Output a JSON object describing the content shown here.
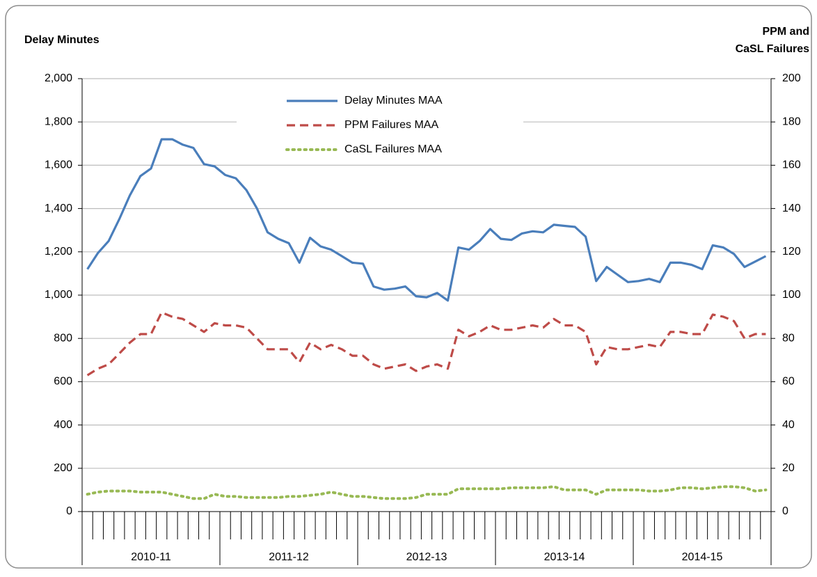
{
  "chart_data": {
    "type": "line",
    "y_label": "Delay Minutes",
    "y2_label_lines": [
      "PPM and",
      "CaSL Failures"
    ],
    "categories": [
      null,
      null,
      null,
      null,
      null,
      null,
      null,
      null,
      null,
      null,
      null,
      null,
      null,
      null,
      null,
      null,
      null,
      null,
      null,
      null,
      null,
      null,
      null,
      null,
      null,
      null,
      null,
      null,
      null,
      null,
      null,
      null,
      null,
      null,
      null,
      null,
      null,
      null,
      null,
      null,
      null,
      null,
      null,
      null,
      null,
      null,
      null,
      null,
      null,
      null,
      null,
      null,
      null,
      null,
      null,
      null,
      null,
      null,
      null,
      null,
      null,
      null,
      null,
      null,
      null
    ],
    "year_groups": [
      "2010-11",
      "2011-12",
      "2012-13",
      "2013-14",
      "2014-15"
    ],
    "ylim": [
      0,
      2000
    ],
    "yticks": [
      0,
      200,
      400,
      600,
      800,
      {
        "value": 1000,
        "label": "1,000"
      },
      {
        "value": 1200,
        "label": "1,200"
      },
      {
        "value": 1400,
        "label": "1,400"
      },
      {
        "value": 1600,
        "label": "1,600"
      },
      {
        "value": 1800,
        "label": "1,800"
      },
      {
        "value": 2000,
        "label": "2,000"
      }
    ],
    "y2lim": [
      0,
      200
    ],
    "y2ticks": [
      0,
      20,
      40,
      60,
      80,
      100,
      120,
      140,
      160,
      180,
      200
    ],
    "grid": true,
    "legend": "top-center",
    "series": [
      {
        "name": "Delay Minutes MAA",
        "color": "#4a7ebb",
        "dash": "solid",
        "values": [
          1120,
          1195,
          1250,
          1350,
          1460,
          1550,
          1585,
          1720,
          1720,
          1695,
          1680,
          1605,
          1595,
          1555,
          1540,
          1485,
          1400,
          1290,
          1260,
          1240,
          1150,
          1265,
          1225,
          1210,
          1180,
          1150,
          1145,
          1040,
          1025,
          1030,
          1040,
          995,
          990,
          1010,
          975,
          1220,
          1210,
          1250,
          1305,
          1260,
          1255,
          1285,
          1295,
          1290,
          1325,
          1320,
          1315,
          1270,
          1065,
          1130,
          1095,
          1060,
          1065,
          1075,
          1060,
          1150,
          1150,
          1140,
          1120,
          1230,
          1220,
          1190,
          1130,
          1155,
          1180
        ]
      },
      {
        "name": "PPM Failures MAA",
        "color": "#be4b48",
        "dash": "dashed",
        "axis": "y2",
        "values": [
          63,
          66,
          68,
          73,
          78,
          82,
          82,
          92,
          90,
          89,
          86,
          83,
          87,
          86,
          86,
          85,
          80,
          75,
          75,
          75,
          69,
          78,
          75,
          77,
          75,
          72,
          72,
          68,
          66,
          67,
          68,
          65,
          67,
          68,
          66,
          84,
          81,
          83,
          86,
          84,
          84,
          85,
          86,
          85,
          89,
          86,
          86,
          83,
          68,
          76,
          75,
          75,
          76,
          77,
          76,
          83,
          83,
          82,
          82,
          91,
          90,
          88,
          80,
          82,
          82
        ]
      },
      {
        "name": "CaSL Failures MAA",
        "color": "#98b954",
        "dash": "dotted",
        "axis": "y2",
        "values": [
          8,
          9,
          9.5,
          9.5,
          9.5,
          9,
          9,
          9,
          8,
          7,
          6,
          6,
          8,
          7,
          7,
          6.5,
          6.5,
          6.5,
          6.5,
          7,
          7,
          7.5,
          8,
          9,
          8,
          7,
          7,
          6.5,
          6,
          6,
          6,
          6.5,
          8,
          8,
          8,
          10.5,
          10.5,
          10.5,
          10.5,
          10.5,
          11,
          11,
          11,
          11,
          11.5,
          10,
          10,
          10,
          8,
          10,
          10,
          10,
          10,
          9.5,
          9.5,
          10,
          11,
          11,
          10.5,
          11,
          11.5,
          11.5,
          11,
          9.5,
          10
        ]
      }
    ]
  }
}
